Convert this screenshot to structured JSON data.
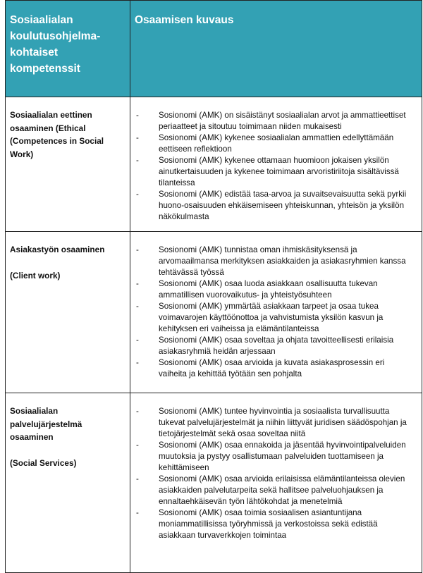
{
  "header": {
    "col1": "Sosiaalialan koulutusohjelma-kohtaiset kompetenssit",
    "col2": "Osaamisen kuvaus"
  },
  "rows": [
    {
      "title": "Sosiaalialan eettinen osaaminen (Ethical (Competences in Social Work)",
      "subtitle": "",
      "items": [
        "Sosionomi (AMK) on sisäistänyt sosiaalialan arvot ja ammattieettiset periaatteet ja sitoutuu toimimaan niiden mukaisesti",
        "Sosionomi (AMK) kykenee sosiaalialan ammattien edellyttämään eettiseen reflektioon",
        "Sosionomi (AMK) kykenee ottamaan huomioon jokaisen yksilön ainutkertaisuuden ja kykenee toimimaan arvoristiriitoja sisältävissä tilanteissa",
        "Sosionomi (AMK) edistää tasa-arvoa ja suvaitsevaisuutta sekä pyrkii huono-osaisuuden ehkäisemiseen yhteiskunnan, yhteisön ja yksilön näkökulmasta"
      ]
    },
    {
      "title": "Asiakastyön osaaminen",
      "subtitle": "(Client work)",
      "items": [
        "Sosionomi (AMK) tunnistaa oman ihmiskäsityksensä ja arvomaailmansa merkityksen asiakkaiden ja asiakasryhmien kanssa tehtävässä työssä",
        "Sosionomi (AMK) osaa luoda asiakkaan osallisuutta tukevan ammatillisen vuorovaikutus- ja yhteistyösuhteen",
        "Sosionomi (AMK) ymmärtää asiakkaan tarpeet ja osaa tukea voimavarojen käyttöönottoa ja vahvistumista yksilön kasvun ja kehityksen eri vaiheissa ja elämäntilanteissa",
        "Sosionomi (AMK) osaa soveltaa ja ohjata tavoitteellisesti erilaisia asiakasryhmiä heidän arjessaan",
        "Sosionomi (AMK) osaa arvioida ja kuvata asiakasprosessin eri vaiheita ja kehittää työtään sen pohjalta"
      ]
    },
    {
      "title": "Sosiaalialan palvelujärjestelmä osaaminen",
      "subtitle": "(Social Services)",
      "items": [
        "Sosionomi (AMK) tuntee hyvinvointia ja sosiaalista turvallisuutta tukevat palvelujärjestelmät ja niihin liittyvät juridisen säädöspohjan ja tietojärjestelmät sekä osaa soveltaa niitä",
        "Sosionomi (AMK) osaa ennakoida ja jäsentää hyvinvointipalveluiden muutoksia ja pystyy osallistumaan palveluiden tuottamiseen ja kehittämiseen",
        "Sosionomi (AMK) osaa arvioida erilaisissa elämäntilanteissa olevien asiakkaiden palvelutarpeita sekä hallitsee palveluohjauksen ja ennaltaehkäisevän työn lähtökohdat ja menetelmiä",
        "Sosionomi (AMK) osaa toimia sosiaalisen asiantuntijana moniammatillisissa työryhmissä ja verkostoissa sekä edistää asiakkaan turvaverkkojen toimintaa"
      ]
    }
  ],
  "bullet": "-",
  "colors": {
    "header_bg": "#33a1b4",
    "header_text": "#ffffff",
    "border": "#222222"
  }
}
